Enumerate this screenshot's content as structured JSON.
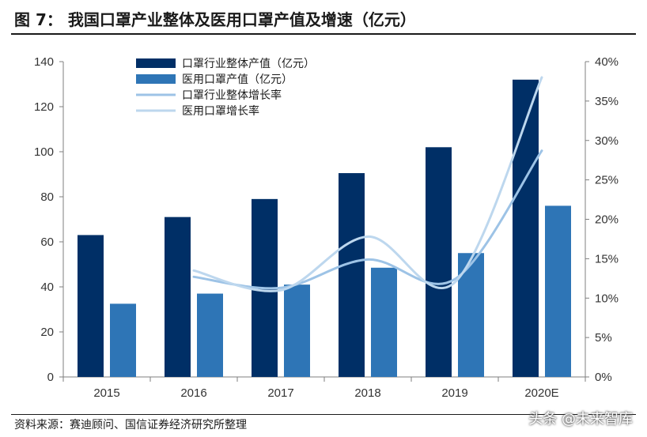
{
  "figure_title": "图 7：  我国口罩产业整体及医用口罩产值及增速（亿元）",
  "source_note": "资料来源：赛迪顾问、国信证券经济研究所整理",
  "watermark": "头条 @未来智库",
  "colors": {
    "industry_bar": "#002f66",
    "medical_bar": "#2e75b6",
    "industry_line": "#9dc3e6",
    "medical_line": "#bdd7ee",
    "axis": "#7f7f7f"
  },
  "chart_data": {
    "type": "bar",
    "categories": [
      "2015",
      "2016",
      "2017",
      "2018",
      "2019",
      "2020E"
    ],
    "series": [
      {
        "name": "口罩行业整体产值（亿元）",
        "kind": "bar",
        "axis": "left",
        "values": [
          63,
          71,
          79,
          90.5,
          102,
          132
        ]
      },
      {
        "name": "医用口罩产值（亿元）",
        "kind": "bar",
        "axis": "left",
        "values": [
          32.5,
          37,
          41,
          48.5,
          55,
          76
        ]
      },
      {
        "name": "口罩行业整体增长率",
        "kind": "line",
        "axis": "right",
        "values": [
          null,
          12.7,
          11.3,
          14.9,
          12.4,
          28.7
        ]
      },
      {
        "name": "医用口罩增长率",
        "kind": "line",
        "axis": "right",
        "values": [
          null,
          13.5,
          11.0,
          17.8,
          12.0,
          38.0
        ]
      }
    ],
    "y_left": {
      "min": 0,
      "max": 140,
      "ticks": [
        0,
        20,
        40,
        60,
        80,
        100,
        120,
        140
      ]
    },
    "y_right": {
      "min": 0,
      "max": 40,
      "ticks": [
        "0%",
        "5%",
        "10%",
        "15%",
        "20%",
        "25%",
        "30%",
        "35%",
        "40%"
      ]
    },
    "legend_position": "top-left",
    "grid": false
  }
}
